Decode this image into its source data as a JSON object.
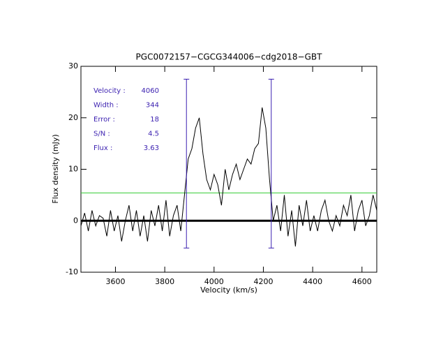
{
  "chart_data": {
    "type": "line",
    "title": "PGC0072157−CGCG344006−cdg2018−GBT",
    "x_label": "Velocity (km/s)",
    "y_label": "Flux density (mJy)",
    "xlim": [
      3460,
      4660
    ],
    "ylim": [
      -10,
      30
    ],
    "xticks": [
      3600,
      3800,
      4000,
      4200,
      4400,
      4600
    ],
    "yticks": [
      -10,
      0,
      10,
      20,
      30
    ],
    "series": [
      {
        "color": "#000000",
        "x": [
          3460,
          3475,
          3490,
          3505,
          3520,
          3535,
          3550,
          3565,
          3580,
          3595,
          3610,
          3625,
          3640,
          3655,
          3670,
          3685,
          3700,
          3715,
          3730,
          3745,
          3760,
          3775,
          3790,
          3805,
          3820,
          3835,
          3850,
          3865,
          3880,
          3895,
          3910,
          3925,
          3940,
          3955,
          3970,
          3985,
          4000,
          4015,
          4030,
          4045,
          4060,
          4075,
          4090,
          4105,
          4120,
          4135,
          4150,
          4165,
          4180,
          4195,
          4210,
          4225,
          4240,
          4255,
          4270,
          4285,
          4300,
          4315,
          4330,
          4345,
          4360,
          4375,
          4390,
          4405,
          4420,
          4435,
          4450,
          4465,
          4480,
          4495,
          4510,
          4525,
          4540,
          4555,
          4570,
          4585,
          4600,
          4615,
          4630,
          4645,
          4660
        ],
        "values": [
          -1,
          1.5,
          -2,
          2,
          -1,
          1,
          0.5,
          -3,
          2,
          -2,
          1,
          -4,
          0,
          3,
          -2,
          2,
          -3,
          1,
          -4,
          2,
          -1,
          3,
          -2,
          4,
          -3,
          1,
          3,
          -2,
          5,
          12,
          14,
          18,
          20,
          13,
          8,
          6,
          9,
          7,
          3,
          10,
          6,
          9,
          11,
          8,
          10,
          12,
          11,
          14,
          15,
          22,
          18,
          8,
          0,
          3,
          -2,
          5,
          -3,
          2,
          -5,
          3,
          -1,
          4,
          -2,
          1,
          -2,
          2,
          4,
          0,
          -2,
          1,
          -1,
          3,
          1,
          5,
          -2,
          2,
          4,
          -1,
          1,
          5,
          2
        ]
      }
    ],
    "zero_line": {
      "value": 0,
      "color": "#000000"
    },
    "level_line": {
      "value": 5.4,
      "color": "#33cc33"
    },
    "markers": {
      "x": [
        3888,
        4232
      ],
      "ylim": [
        -5.3,
        27.5
      ],
      "color": "#3a1fb0"
    },
    "annotations": [
      {
        "label": "Velocity :",
        "value": 4060
      },
      {
        "label": "Width :",
        "value": 344
      },
      {
        "label": "Error :",
        "value": 18
      },
      {
        "label": "S/N :",
        "value": 4.5
      },
      {
        "label": "Flux :",
        "value": 3.63
      }
    ]
  }
}
